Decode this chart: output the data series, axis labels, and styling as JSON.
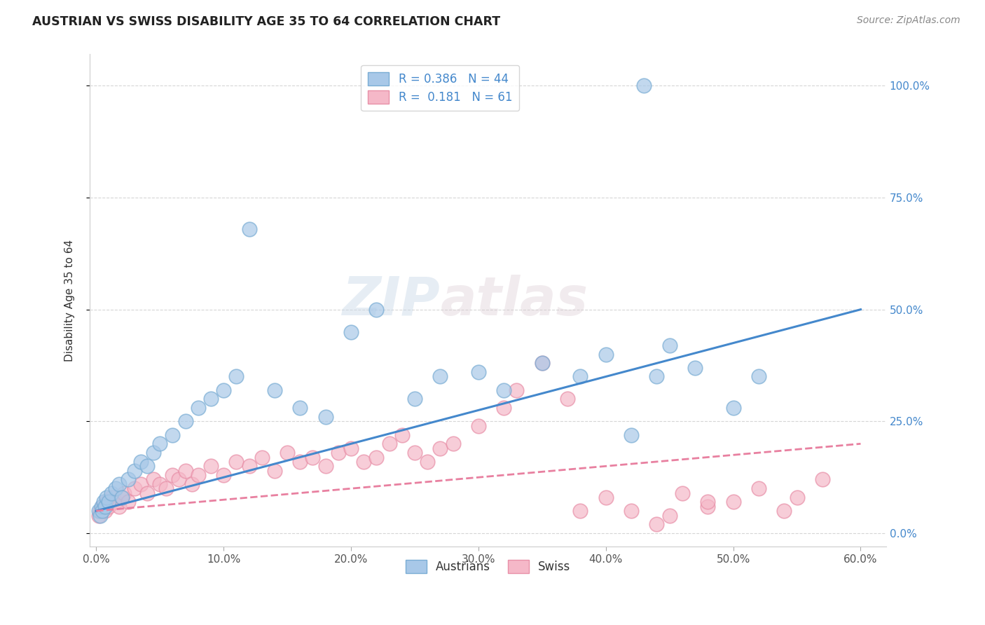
{
  "title": "AUSTRIAN VS SWISS DISABILITY AGE 35 TO 64 CORRELATION CHART",
  "source": "Source: ZipAtlas.com",
  "ylabel": "Disability Age 35 to 64",
  "x_tick_labels": [
    "0.0%",
    "10.0%",
    "20.0%",
    "30.0%",
    "40.0%",
    "50.0%",
    "60.0%"
  ],
  "x_tick_values": [
    0,
    10,
    20,
    30,
    40,
    50,
    60
  ],
  "y_tick_labels": [
    "0.0%",
    "25.0%",
    "50.0%",
    "75.0%",
    "100.0%"
  ],
  "y_tick_values": [
    0,
    25,
    50,
    75,
    100
  ],
  "xlim": [
    -0.5,
    62
  ],
  "ylim": [
    -3,
    107
  ],
  "R_austrians": 0.386,
  "N_austrians": 44,
  "R_swiss": 0.181,
  "N_swiss": 61,
  "austrians_color_fill": "#a8c8e8",
  "austrians_color_edge": "#7aadd4",
  "swiss_color_fill": "#f5b8c8",
  "swiss_color_edge": "#e890a8",
  "regression_austrians_color": "#4488cc",
  "regression_swiss_color": "#e880a0",
  "background_color": "#ffffff",
  "grid_color": "#cccccc",
  "watermark_color": "#d8e8f0",
  "right_tick_color": "#4488cc",
  "title_color": "#222222",
  "source_color": "#888888",
  "ylabel_color": "#333333",
  "legend_R_color": "#4488cc",
  "legend_N_color": "#222222",
  "reg_line_start_x": 0,
  "reg_aust_start_y": 5.0,
  "reg_aust_end_y": 50.0,
  "reg_aust_end_x": 60,
  "reg_swiss_start_y": 5.0,
  "reg_swiss_end_y": 20.0,
  "reg_swiss_end_x": 60,
  "austrians_x": [
    0.2,
    0.3,
    0.4,
    0.5,
    0.6,
    0.7,
    0.8,
    1.0,
    1.2,
    1.5,
    1.8,
    2.0,
    2.5,
    3.0,
    3.5,
    4.0,
    4.5,
    5.0,
    6.0,
    7.0,
    8.0,
    9.0,
    10.0,
    11.0,
    12.0,
    14.0,
    16.0,
    18.0,
    20.0,
    22.0,
    25.0,
    27.0,
    30.0,
    32.0,
    35.0,
    38.0,
    40.0,
    42.0,
    44.0,
    45.0,
    47.0,
    50.0,
    52.0,
    43.0
  ],
  "austrians_y": [
    5.0,
    4.0,
    6.0,
    5.0,
    7.0,
    6.0,
    8.0,
    7.0,
    9.0,
    10.0,
    11.0,
    8.0,
    12.0,
    14.0,
    16.0,
    15.0,
    18.0,
    20.0,
    22.0,
    25.0,
    28.0,
    30.0,
    32.0,
    35.0,
    68.0,
    32.0,
    28.0,
    26.0,
    45.0,
    50.0,
    30.0,
    35.0,
    36.0,
    32.0,
    38.0,
    35.0,
    40.0,
    22.0,
    35.0,
    42.0,
    37.0,
    28.0,
    35.0,
    100.0
  ],
  "swiss_x": [
    0.2,
    0.3,
    0.5,
    0.7,
    0.8,
    1.0,
    1.2,
    1.5,
    1.8,
    2.0,
    2.2,
    2.5,
    3.0,
    3.5,
    4.0,
    4.5,
    5.0,
    5.5,
    6.0,
    6.5,
    7.0,
    7.5,
    8.0,
    9.0,
    10.0,
    11.0,
    12.0,
    13.0,
    14.0,
    15.0,
    16.0,
    17.0,
    18.0,
    19.0,
    20.0,
    21.0,
    22.0,
    23.0,
    24.0,
    25.0,
    26.0,
    27.0,
    28.0,
    30.0,
    32.0,
    33.0,
    35.0,
    37.0,
    40.0,
    42.0,
    45.0,
    48.0,
    50.0,
    52.0,
    55.0,
    57.0,
    38.0,
    44.0,
    46.0,
    48.0,
    54.0
  ],
  "swiss_y": [
    4.0,
    5.0,
    6.0,
    5.0,
    7.0,
    6.0,
    8.0,
    7.0,
    6.0,
    8.0,
    9.0,
    7.0,
    10.0,
    11.0,
    9.0,
    12.0,
    11.0,
    10.0,
    13.0,
    12.0,
    14.0,
    11.0,
    13.0,
    15.0,
    13.0,
    16.0,
    15.0,
    17.0,
    14.0,
    18.0,
    16.0,
    17.0,
    15.0,
    18.0,
    19.0,
    16.0,
    17.0,
    20.0,
    22.0,
    18.0,
    16.0,
    19.0,
    20.0,
    24.0,
    28.0,
    32.0,
    38.0,
    30.0,
    8.0,
    5.0,
    4.0,
    6.0,
    7.0,
    10.0,
    8.0,
    12.0,
    5.0,
    2.0,
    9.0,
    7.0,
    5.0
  ]
}
